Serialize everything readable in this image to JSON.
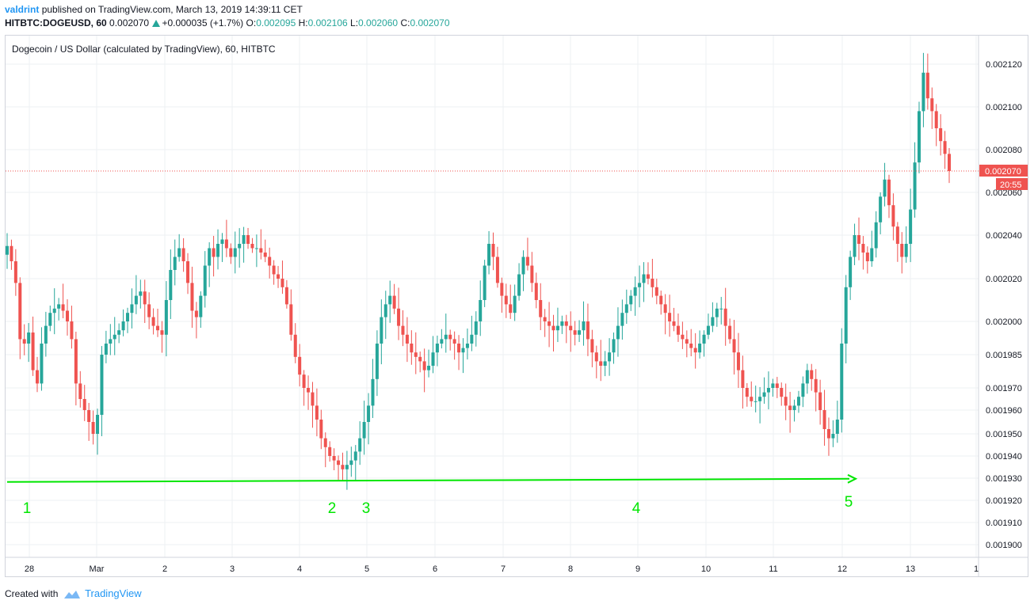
{
  "header": {
    "user": "valdrint",
    "published_text": "published on TradingView.com, March 13, 2019 14:39:11 CET",
    "symbol": "HITBTC:DOGEUSD, 60",
    "last": "0.002070",
    "change": "+0.000035 (+1.7%)",
    "o_label": "O:",
    "o_value": "0.002095",
    "h_label": "H:",
    "h_value": "0.002106",
    "l_label": "L:",
    "l_value": "0.002060",
    "c_label": "C:",
    "c_value": "0.002070"
  },
  "footer": {
    "created_with": "Created with",
    "brand": "TradingView"
  },
  "colors": {
    "up": "#26a69a",
    "down": "#ef5350",
    "annotation": "#00e600",
    "price_line": "#ef5350"
  },
  "chart_data": {
    "type": "candlestick",
    "title": "Dogecoin / US Dollar (calculated by TradingView), 60, HITBTC",
    "y_ticks": [
      "0.001900",
      "0.001910",
      "0.001920",
      "0.001930",
      "0.001940",
      "0.001950",
      "0.001960",
      "0.001970",
      "0.001985",
      "0.002000",
      "0.002020",
      "0.002040",
      "0.002060",
      "0.002080",
      "0.002100",
      "0.002120"
    ],
    "x_ticks": [
      "28",
      "Mar",
      "2",
      "3",
      "4",
      "5",
      "6",
      "7",
      "8",
      "9",
      "10",
      "11",
      "12",
      "13",
      "1"
    ],
    "current_price_label": "0.002070",
    "countdown_label": "20:55",
    "support_level": 0.001929,
    "annotations": [
      {
        "label": "1",
        "index": 0
      },
      {
        "label": "2",
        "index": 1
      },
      {
        "label": "3",
        "index": 2
      },
      {
        "label": "4",
        "index": 3
      },
      {
        "label": "5",
        "index": 4
      }
    ],
    "closes": [
      0.002035,
      0.002028,
      0.002018,
      0.001992,
      0.00199,
      0.001995,
      0.001978,
      0.001972,
      0.00199,
      0.001998,
      0.002004,
      0.002006,
      0.002008,
      0.002005,
      0.002,
      0.001992,
      0.001972,
      0.001965,
      0.00196,
      0.001955,
      0.00195,
      0.001958,
      0.001985,
      0.00199,
      0.001992,
      0.001994,
      0.001996,
      0.002,
      0.002004,
      0.002008,
      0.002012,
      0.002014,
      0.002008,
      0.002002,
      0.001998,
      0.001996,
      0.001994,
      0.00201,
      0.002024,
      0.00203,
      0.002034,
      0.002028,
      0.002018,
      0.002005,
      0.002002,
      0.002012,
      0.002026,
      0.002034,
      0.00203,
      0.002036,
      0.002038,
      0.002034,
      0.00203,
      0.002034,
      0.002036,
      0.00204,
      0.002036,
      0.002034,
      0.002034,
      0.002032,
      0.00203,
      0.002026,
      0.002022,
      0.00202,
      0.002016,
      0.002008,
      0.001994,
      0.001984,
      0.001976,
      0.00197,
      0.001968,
      0.001962,
      0.001956,
      0.001948,
      0.001944,
      0.00194,
      0.001938,
      0.001936,
      0.001934,
      0.001936,
      0.001938,
      0.001942,
      0.001948,
      0.001955,
      0.001962,
      0.001974,
      0.00199,
      0.002002,
      0.002008,
      0.002012,
      0.002006,
      0.001998,
      0.001994,
      0.00199,
      0.001986,
      0.001984,
      0.001982,
      0.001978,
      0.00198,
      0.001986,
      0.00199,
      0.001992,
      0.001994,
      0.001992,
      0.00199,
      0.001986,
      0.001988,
      0.00199,
      0.001994,
      0.002,
      0.00201,
      0.002026,
      0.002036,
      0.00203,
      0.002018,
      0.002012,
      0.002008,
      0.002004,
      0.002012,
      0.002022,
      0.00203,
      0.002026,
      0.002018,
      0.00201,
      0.002002,
      0.002,
      0.001998,
      0.001996,
      0.001998,
      0.002,
      0.001998,
      0.001996,
      0.001994,
      0.001996,
      0.002,
      0.001992,
      0.001986,
      0.001982,
      0.00198,
      0.001982,
      0.001986,
      0.001992,
      0.001998,
      0.002004,
      0.002008,
      0.002012,
      0.002016,
      0.002018,
      0.002022,
      0.00202,
      0.002016,
      0.002012,
      0.002008,
      0.002004,
      0.002,
      0.001998,
      0.001994,
      0.001992,
      0.00199,
      0.001988,
      0.001986,
      0.00199,
      0.001994,
      0.001998,
      0.002002,
      0.002006,
      0.002006,
      0.001998,
      0.001992,
      0.001986,
      0.001978,
      0.00197,
      0.001966,
      0.001964,
      0.001964,
      0.001966,
      0.001968,
      0.00197,
      0.001972,
      0.00197,
      0.001966,
      0.001962,
      0.00196,
      0.001962,
      0.001966,
      0.001972,
      0.001978,
      0.001974,
      0.001968,
      0.00196,
      0.001952,
      0.001948,
      0.00195,
      0.001956,
      0.00199,
      0.002016,
      0.00203,
      0.00204,
      0.002036,
      0.002032,
      0.002028,
      0.002034,
      0.002046,
      0.002058,
      0.002066,
      0.002054,
      0.002044,
      0.002036,
      0.00203,
      0.002036,
      0.002052,
      0.002074,
      0.002098,
      0.002116,
      0.002104,
      0.002098,
      0.00209,
      0.002084,
      0.002078,
      0.00207
    ],
    "annotation_points": [
      {
        "label": "1",
        "bar": 2
      },
      {
        "label": "2",
        "bar": 76
      },
      {
        "label": "3",
        "bar": 82
      },
      {
        "label": "4",
        "bar": 140
      },
      {
        "label": "5",
        "bar": 188
      }
    ]
  }
}
